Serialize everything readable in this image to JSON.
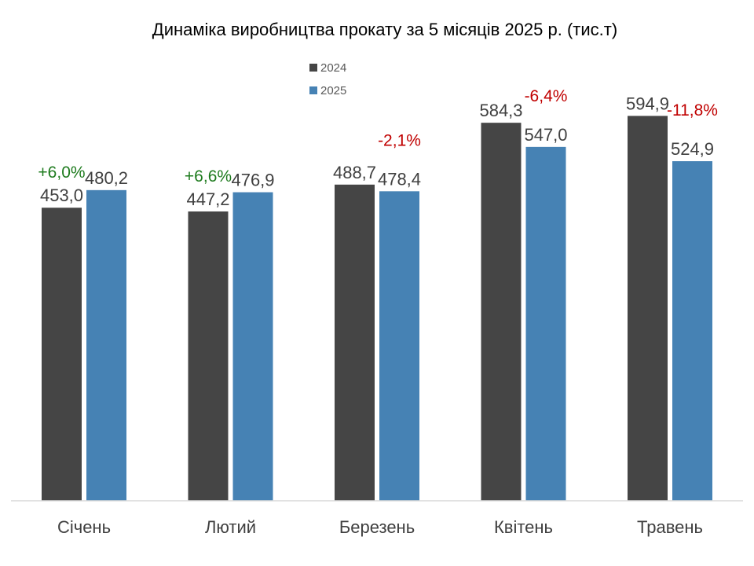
{
  "chart_data": {
    "type": "bar",
    "title": "Динаміка виробництва прокату за 5 місяців 2025 р. (тис.т)",
    "categories": [
      "Січень",
      "Лютий",
      "Березень",
      "Квітень",
      "Травень"
    ],
    "series": [
      {
        "name": "2024",
        "values": [
          453.0,
          447.2,
          488.7,
          584.3,
          594.9
        ],
        "labels": [
          "453,0",
          "447,2",
          "488,7",
          "584,3",
          "594,9"
        ],
        "color": "#454545"
      },
      {
        "name": "2025",
        "values": [
          480.2,
          476.9,
          478.4,
          547.0,
          524.9
        ],
        "labels": [
          "480,2",
          "476,9",
          "478,4",
          "547,0",
          "524,9"
        ],
        "color": "#4682b4"
      }
    ],
    "changes": [
      "+6,0%",
      "+6,6%",
      "-2,1%",
      "-6,4%",
      "-11,8%"
    ],
    "change_colors": {
      "positive": "#1e7b1e",
      "negative": "#c00000"
    },
    "ylim": [
      0,
      660
    ],
    "grid": false,
    "legend_position": "top-center",
    "xlabel": "",
    "ylabel": ""
  }
}
